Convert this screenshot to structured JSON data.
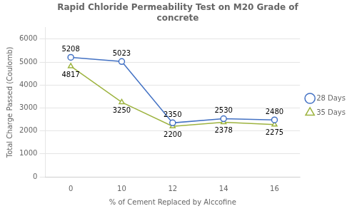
{
  "chart_data": {
    "type": "line",
    "title": "Rapid Chloride Permeability Test on M20 Grade of\nconcrete",
    "xlabel": "% of Cement Replaced by Alccofine",
    "ylabel": "Total Charge Passed (Coulomb)",
    "categories": [
      "0",
      "10",
      "12",
      "14",
      "16"
    ],
    "series": [
      {
        "name": "28 Days",
        "color": "#4472C4",
        "marker": "circle",
        "line_style": "solid",
        "values": [
          5208,
          5023,
          2350,
          2530,
          2480
        ]
      },
      {
        "name": "35 Days",
        "color": "#9DB33F",
        "marker": "triangle",
        "line_style": "solid",
        "values": [
          4817,
          3250,
          2200,
          2378,
          2275
        ]
      }
    ],
    "ylim": [
      0,
      6500
    ],
    "yticks": [
      0,
      1000,
      2000,
      3000,
      4000,
      5000,
      6000
    ],
    "grid": true,
    "legend": "right",
    "data_labels": true
  }
}
